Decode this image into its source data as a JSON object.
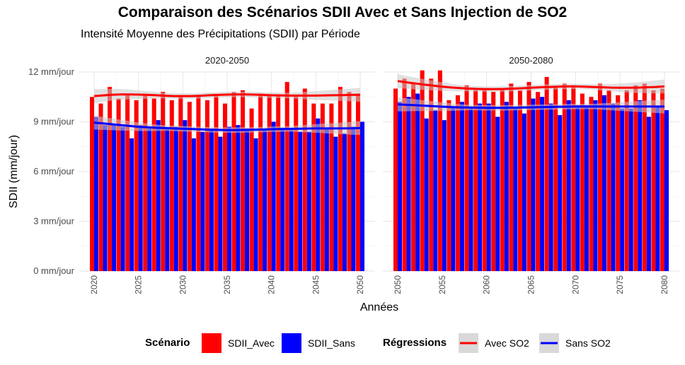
{
  "title": "Comparaison des Scénarios SDII Avec et Sans Injection de SO2",
  "subtitle": "Intensité Moyenne des Précipitations (SDII) par Période",
  "colors": {
    "avec": "#ff0000",
    "sans": "#0000ff",
    "band": "#c8c8c8"
  },
  "legend": {
    "scenario_title": "Scénario",
    "scenario_items": [
      "SDII_Avec",
      "SDII_Sans"
    ],
    "regression_title": "Régressions",
    "regression_items": [
      "Avec SO2",
      "Sans SO2"
    ]
  },
  "chart_data": {
    "type": "bar",
    "xlabel": "Années",
    "ylabel": "SDII (mm/jour)",
    "ylim": [
      0,
      12
    ],
    "ytick_labels": [
      "0 mm/jour",
      "3 mm/jour",
      "6 mm/jour",
      "9 mm/jour",
      "12 mm/jour"
    ],
    "ytick_values": [
      0,
      3,
      6,
      9,
      12
    ],
    "grid": true,
    "legend_position": "bottom",
    "panels": [
      {
        "label": "2020-2050",
        "xlim": [
          2020,
          2050
        ],
        "xticks": [
          2020,
          2025,
          2030,
          2035,
          2040,
          2045,
          2050
        ],
        "years": [
          2020,
          2021,
          2022,
          2023,
          2024,
          2025,
          2026,
          2027,
          2028,
          2029,
          2030,
          2031,
          2032,
          2033,
          2034,
          2035,
          2036,
          2037,
          2038,
          2039,
          2040,
          2041,
          2042,
          2043,
          2044,
          2045,
          2046,
          2047,
          2048,
          2049,
          2050
        ],
        "series": [
          {
            "name": "SDII_Avec",
            "values": [
              10.5,
              10.1,
              11.1,
              10.4,
              10.7,
              10.3,
              10.7,
              10.4,
              10.8,
              10.3,
              10.5,
              10.2,
              10.6,
              10.3,
              10.6,
              10.1,
              10.8,
              10.9,
              9.8,
              10.7,
              10.6,
              10.6,
              11.4,
              10.6,
              11.0,
              10.1,
              10.1,
              10.1,
              11.1,
              10.8,
              10.7
            ]
          },
          {
            "name": "SDII_Sans",
            "values": [
              9.3,
              8.8,
              8.8,
              8.7,
              8.0,
              8.8,
              8.6,
              9.1,
              8.6,
              8.7,
              9.1,
              8.0,
              8.4,
              8.6,
              8.1,
              8.7,
              8.8,
              8.6,
              8.0,
              8.5,
              9.0,
              8.6,
              8.5,
              8.4,
              8.4,
              9.2,
              8.6,
              8.1,
              8.3,
              8.7,
              9.0
            ]
          }
        ],
        "regressions": [
          {
            "name": "Avec SO2",
            "values": [
              10.55,
              10.59,
              10.63,
              10.65,
              10.65,
              10.64,
              10.62,
              10.6,
              10.57,
              10.55,
              10.55,
              10.55,
              10.57,
              10.6,
              10.62,
              10.64,
              10.65,
              10.65,
              10.64,
              10.62,
              10.6,
              10.59,
              10.58,
              10.58,
              10.58,
              10.58,
              10.59,
              10.6,
              10.61,
              10.62,
              10.63
            ]
          },
          {
            "name": "Sans SO2",
            "values": [
              8.95,
              8.9,
              8.85,
              8.8,
              8.75,
              8.7,
              8.67,
              8.64,
              8.62,
              8.6,
              8.58,
              8.56,
              8.54,
              8.52,
              8.51,
              8.5,
              8.5,
              8.51,
              8.52,
              8.53,
              8.55,
              8.56,
              8.57,
              8.58,
              8.59,
              8.6,
              8.6,
              8.6,
              8.6,
              8.61,
              8.62
            ]
          }
        ]
      },
      {
        "label": "2050-2080",
        "xlim": [
          2050,
          2080
        ],
        "xticks": [
          2050,
          2055,
          2060,
          2065,
          2070,
          2075,
          2080
        ],
        "years": [
          2050,
          2051,
          2052,
          2053,
          2054,
          2055,
          2056,
          2057,
          2058,
          2059,
          2060,
          2061,
          2062,
          2063,
          2064,
          2065,
          2066,
          2067,
          2068,
          2069,
          2070,
          2071,
          2072,
          2073,
          2074,
          2075,
          2076,
          2077,
          2078,
          2079,
          2080
        ],
        "series": [
          {
            "name": "SDII_Avec",
            "values": [
              11.0,
              11.6,
              11.3,
              12.1,
              11.6,
              12.1,
              10.3,
              10.6,
              11.2,
              10.9,
              10.9,
              10.8,
              11.0,
              11.3,
              10.9,
              11.4,
              10.8,
              11.7,
              11.1,
              11.3,
              11.2,
              10.7,
              10.5,
              11.3,
              10.9,
              10.6,
              10.9,
              11.2,
              11.3,
              10.9,
              11.0
            ]
          },
          {
            "name": "SDII_Sans",
            "values": [
              10.2,
              10.5,
              10.7,
              9.2,
              9.7,
              9.1,
              9.9,
              10.2,
              9.9,
              10.1,
              10.1,
              9.3,
              10.2,
              9.8,
              9.5,
              10.4,
              10.5,
              10.1,
              9.4,
              10.3,
              10.0,
              10.0,
              10.3,
              10.6,
              10.1,
              9.8,
              9.8,
              10.3,
              9.3,
              9.9,
              9.7
            ]
          }
        ],
        "regressions": [
          {
            "name": "Avec SO2",
            "values": [
              11.45,
              11.38,
              11.31,
              11.24,
              11.18,
              11.12,
              11.07,
              11.03,
              11.0,
              10.98,
              10.97,
              10.97,
              10.98,
              11.0,
              11.02,
              11.05,
              11.08,
              11.1,
              11.12,
              11.13,
              11.13,
              11.12,
              11.1,
              11.08,
              11.06,
              11.05,
              11.05,
              11.06,
              11.08,
              11.1,
              11.13
            ]
          },
          {
            "name": "Sans SO2",
            "values": [
              10.05,
              10.02,
              10.0,
              9.97,
              9.94,
              9.91,
              9.89,
              9.87,
              9.86,
              9.85,
              9.84,
              9.84,
              9.84,
              9.85,
              9.86,
              9.87,
              9.88,
              9.89,
              9.9,
              9.91,
              9.92,
              9.92,
              9.92,
              9.92,
              9.92,
              9.92,
              9.92,
              9.92,
              9.92,
              9.92,
              9.92
            ]
          }
        ]
      }
    ]
  }
}
